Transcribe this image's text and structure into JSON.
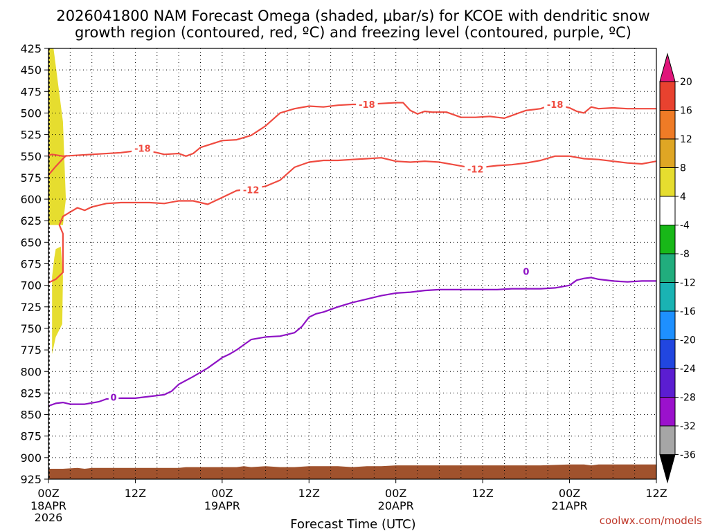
{
  "chart_data": {
    "type": "contour",
    "title_line1": "2026041800 NAM Forecast Omega (shaded, μbar/s) for KCOE with dendritic snow",
    "title_line2": "growth region (contoured, red, ºC) and freezing level (contoured, purple, ºC)",
    "xlabel": "Forecast Time (UTC)",
    "credit": "coolwx.com/models",
    "xlim": [
      0,
      84
    ],
    "ylim": [
      425,
      925
    ],
    "y_ticks": [
      425,
      450,
      475,
      500,
      525,
      550,
      575,
      600,
      625,
      650,
      675,
      700,
      725,
      750,
      775,
      800,
      825,
      850,
      875,
      900,
      925
    ],
    "x_ticks": [
      {
        "hour": 0,
        "label": "00Z",
        "sub": "18APR",
        "sub2": "2026"
      },
      {
        "hour": 12,
        "label": "12Z",
        "sub": "",
        "sub2": ""
      },
      {
        "hour": 24,
        "label": "00Z",
        "sub": "19APR",
        "sub2": ""
      },
      {
        "hour": 36,
        "label": "12Z",
        "sub": "",
        "sub2": ""
      },
      {
        "hour": 48,
        "label": "00Z",
        "sub": "20APR",
        "sub2": ""
      },
      {
        "hour": 60,
        "label": "12Z",
        "sub": "",
        "sub2": ""
      },
      {
        "hour": 72,
        "label": "00Z",
        "sub": "21APR",
        "sub2": ""
      },
      {
        "hour": 84,
        "label": "12Z",
        "sub": "",
        "sub2": ""
      }
    ],
    "colorbar": {
      "labels": [
        "20",
        "16",
        "12",
        "8",
        "4",
        "-4",
        "-8",
        "-12",
        "-16",
        "-20",
        "-24",
        "-28",
        "-32",
        "-36"
      ],
      "colors": [
        "#e8422f",
        "#ef7b26",
        "#dfa624",
        "#e6dd2f",
        "#ffffff",
        "#18b818",
        "#21ad7d",
        "#1ab3b3",
        "#1e90ff",
        "#2146e0",
        "#5b1dd1",
        "#9b11cc",
        "#a6a6a6"
      ],
      "top_arrow_color": "#e0157a",
      "bottom_arrow_color": "#000000"
    },
    "series": [
      {
        "name": "dgz_-18",
        "label": "-18",
        "color": "#ef4b40",
        "label_points": [
          {
            "x": 13,
            "y": 541
          },
          {
            "x": 44,
            "y": 490
          },
          {
            "x": 70,
            "y": 490
          }
        ],
        "points": [
          [
            0,
            549
          ],
          [
            0.5,
            548
          ],
          [
            2,
            550
          ],
          [
            6,
            548
          ],
          [
            10,
            546
          ],
          [
            11,
            545
          ],
          [
            13,
            543
          ],
          [
            15,
            546
          ],
          [
            16,
            548
          ],
          [
            18,
            547
          ],
          [
            19,
            550
          ],
          [
            20,
            547
          ],
          [
            21,
            540
          ],
          [
            24,
            532
          ],
          [
            26,
            531
          ],
          [
            28,
            526
          ],
          [
            30,
            515
          ],
          [
            32,
            500
          ],
          [
            34,
            495
          ],
          [
            36,
            492
          ],
          [
            38,
            493
          ],
          [
            40,
            491
          ],
          [
            42,
            490
          ],
          [
            44,
            490
          ],
          [
            46,
            489
          ],
          [
            48,
            488
          ],
          [
            49,
            488
          ],
          [
            50,
            497
          ],
          [
            51,
            501
          ],
          [
            52,
            498
          ],
          [
            53,
            499
          ],
          [
            55,
            499
          ],
          [
            57,
            505
          ],
          [
            59,
            505
          ],
          [
            61,
            504
          ],
          [
            62,
            505
          ],
          [
            63,
            506
          ],
          [
            64,
            503
          ],
          [
            65,
            500
          ],
          [
            66,
            497
          ],
          [
            67,
            496
          ],
          [
            68,
            495
          ],
          [
            69,
            492
          ],
          [
            70,
            491
          ],
          [
            71,
            492
          ],
          [
            72,
            494
          ],
          [
            73,
            498
          ],
          [
            74,
            500
          ],
          [
            75,
            493
          ],
          [
            76,
            495
          ],
          [
            78,
            494
          ],
          [
            80,
            495
          ],
          [
            82,
            495
          ],
          [
            84,
            495
          ]
        ]
      },
      {
        "name": "dgz_-12",
        "label": "-12",
        "color": "#ef4b40",
        "label_points": [
          {
            "x": 28,
            "y": 589
          },
          {
            "x": 59,
            "y": 565
          }
        ],
        "points": [
          [
            0,
            697
          ],
          [
            1,
            693
          ],
          [
            2,
            685
          ],
          [
            2,
            640
          ],
          [
            1.5,
            630
          ],
          [
            2,
            620
          ],
          [
            3,
            615
          ],
          [
            4,
            610
          ],
          [
            5,
            613
          ],
          [
            6,
            609
          ],
          [
            8,
            605
          ],
          [
            10,
            604
          ],
          [
            12,
            604
          ],
          [
            14,
            604
          ],
          [
            16,
            605
          ],
          [
            18,
            602
          ],
          [
            20,
            602
          ],
          [
            22,
            606
          ],
          [
            24,
            598
          ],
          [
            26,
            590
          ],
          [
            28,
            588
          ],
          [
            30,
            585
          ],
          [
            32,
            578
          ],
          [
            34,
            563
          ],
          [
            36,
            557
          ],
          [
            38,
            555
          ],
          [
            40,
            555
          ],
          [
            42,
            554
          ],
          [
            44,
            553
          ],
          [
            46,
            552
          ],
          [
            48,
            556
          ],
          [
            50,
            557
          ],
          [
            52,
            556
          ],
          [
            54,
            557
          ],
          [
            56,
            560
          ],
          [
            58,
            563
          ],
          [
            60,
            563
          ],
          [
            62,
            561
          ],
          [
            64,
            560
          ],
          [
            66,
            558
          ],
          [
            68,
            555
          ],
          [
            70,
            550
          ],
          [
            72,
            550
          ],
          [
            74,
            553
          ],
          [
            76,
            554
          ],
          [
            78,
            556
          ],
          [
            80,
            558
          ],
          [
            82,
            559
          ],
          [
            84,
            556
          ]
        ]
      },
      {
        "name": "dgz_-18_lower",
        "label": "",
        "color": "#ef4b40",
        "label_points": [],
        "points": [
          [
            0,
            572
          ],
          [
            1,
            562
          ],
          [
            2,
            553
          ],
          [
            2.5,
            549
          ]
        ]
      },
      {
        "name": "freezing_level_0",
        "label": "0",
        "color": "#8e12c5",
        "label_points": [
          {
            "x": 9,
            "y": 830
          },
          {
            "x": 66,
            "y": 684
          }
        ],
        "points": [
          [
            0,
            840
          ],
          [
            1,
            837
          ],
          [
            2,
            836
          ],
          [
            3,
            838
          ],
          [
            5,
            838
          ],
          [
            7,
            835
          ],
          [
            8,
            832
          ],
          [
            10,
            831
          ],
          [
            12,
            831
          ],
          [
            14,
            829
          ],
          [
            16,
            827
          ],
          [
            17,
            823
          ],
          [
            18,
            815
          ],
          [
            20,
            806
          ],
          [
            22,
            796
          ],
          [
            24,
            784
          ],
          [
            25,
            780
          ],
          [
            26,
            775
          ],
          [
            27,
            769
          ],
          [
            28,
            763
          ],
          [
            30,
            760
          ],
          [
            32,
            759
          ],
          [
            34,
            755
          ],
          [
            35,
            748
          ],
          [
            36,
            737
          ],
          [
            37,
            733
          ],
          [
            38,
            731
          ],
          [
            40,
            725
          ],
          [
            42,
            720
          ],
          [
            44,
            716
          ],
          [
            46,
            712
          ],
          [
            48,
            709
          ],
          [
            50,
            708
          ],
          [
            52,
            706
          ],
          [
            54,
            705
          ],
          [
            56,
            705
          ],
          [
            58,
            705
          ],
          [
            60,
            705
          ],
          [
            62,
            705
          ],
          [
            64,
            704
          ],
          [
            66,
            704
          ],
          [
            68,
            704
          ],
          [
            70,
            703
          ],
          [
            72,
            700
          ],
          [
            73,
            694
          ],
          [
            74,
            692
          ],
          [
            75,
            691
          ],
          [
            76,
            693
          ],
          [
            78,
            695
          ],
          [
            80,
            696
          ],
          [
            82,
            695
          ],
          [
            84,
            695
          ]
        ]
      }
    ],
    "omega_shading": [
      {
        "value_range": "4 to 8",
        "color": "#e6dd2f",
        "polygon": [
          [
            0,
            425
          ],
          [
            0.7,
            425
          ],
          [
            2,
            510
          ],
          [
            2.4,
            600
          ],
          [
            2,
            630
          ],
          [
            0,
            630
          ]
        ]
      },
      {
        "value_range": "4 to 8",
        "color": "#e6dd2f",
        "polygon": [
          [
            0.5,
            780
          ],
          [
            0.5,
            690
          ],
          [
            0.8,
            668
          ],
          [
            1,
            658
          ],
          [
            1.7,
            655
          ],
          [
            2,
            690
          ],
          [
            1.9,
            745
          ],
          [
            1,
            760
          ]
        ]
      }
    ],
    "terrain": {
      "color": "#a0522d",
      "top_profile": [
        [
          0,
          913
        ],
        [
          2,
          913
        ],
        [
          4,
          912
        ],
        [
          5,
          913
        ],
        [
          6,
          912
        ],
        [
          10,
          912
        ],
        [
          14,
          912
        ],
        [
          18,
          912
        ],
        [
          19,
          911
        ],
        [
          22,
          911
        ],
        [
          24,
          911
        ],
        [
          26,
          911
        ],
        [
          27,
          910
        ],
        [
          28,
          911
        ],
        [
          30,
          910
        ],
        [
          32,
          911
        ],
        [
          34,
          911
        ],
        [
          36,
          910
        ],
        [
          38,
          910
        ],
        [
          40,
          910
        ],
        [
          42,
          911
        ],
        [
          44,
          910
        ],
        [
          46,
          910
        ],
        [
          48,
          909
        ],
        [
          50,
          909
        ],
        [
          52,
          909
        ],
        [
          56,
          909
        ],
        [
          60,
          909
        ],
        [
          64,
          909
        ],
        [
          68,
          909
        ],
        [
          72,
          908
        ],
        [
          74,
          908
        ],
        [
          75,
          909
        ],
        [
          76,
          908
        ],
        [
          80,
          908
        ],
        [
          84,
          908
        ]
      ]
    }
  }
}
